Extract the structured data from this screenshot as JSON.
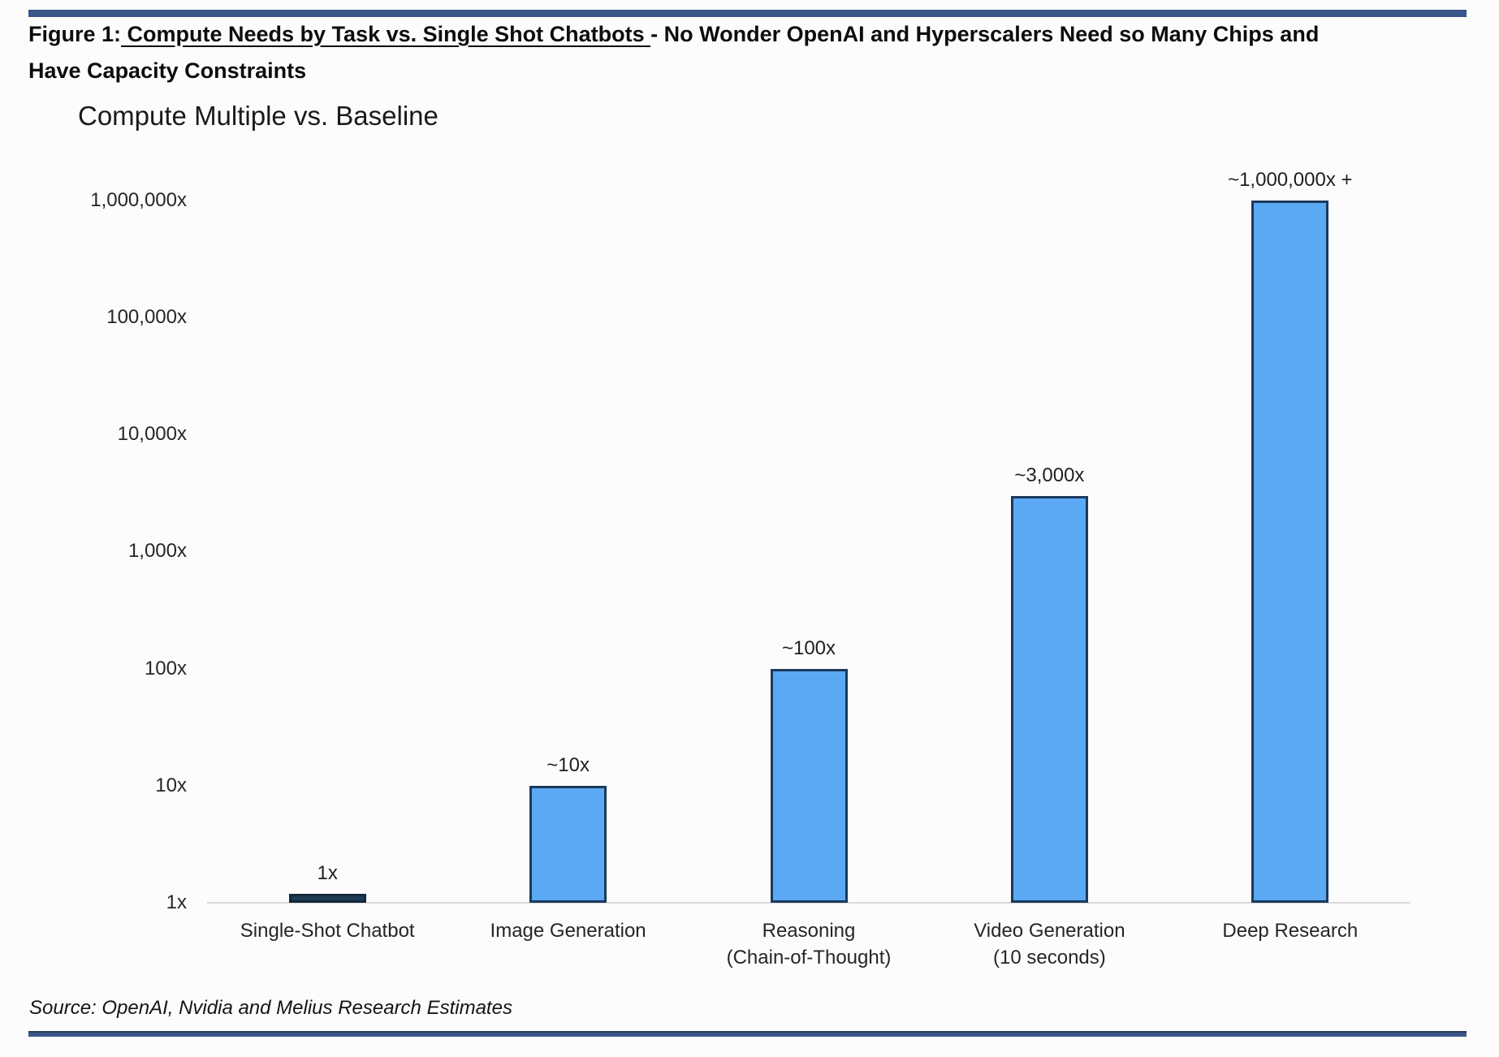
{
  "header": {
    "prefix": "Figure 1:",
    "underlined": " Compute Needs by Task vs. Single Shot Chatbots ",
    "suffix": "- No Wonder OpenAI and Hyperscalers Need so Many Chips and",
    "line2": "Have Capacity Constraints"
  },
  "chart_data": {
    "type": "bar",
    "title": "Compute Multiple vs. Baseline",
    "scale": "log",
    "categories": [
      "Single-Shot Chatbot",
      "Image Generation",
      "Reasoning\n(Chain-of-Thought)",
      "Video Generation\n(10 seconds)",
      "Deep Research"
    ],
    "values": [
      1,
      10,
      100,
      3000,
      1000000
    ],
    "bar_labels": [
      "1x",
      "~10x",
      "~100x",
      "~3,000x",
      "~1,000,000x +"
    ],
    "y_ticks": [
      "1,000,000x",
      "100,000x",
      "10,000x",
      "1,000x",
      "100x",
      "10x",
      "1x"
    ],
    "ylim": [
      1,
      1000000
    ],
    "grid": false,
    "legend": false,
    "colors": {
      "bar_fill": "#5ba9f5",
      "bar_border": "#1b3a5c",
      "baseline_bar_fill": "#1e3a55",
      "baseline_bar_border": "#14283c",
      "axis_line": "#d9d9d9",
      "rule_blue": "#3a5588"
    }
  },
  "footer": {
    "source": "Source: OpenAI, Nvidia and Melius Research Estimates"
  }
}
